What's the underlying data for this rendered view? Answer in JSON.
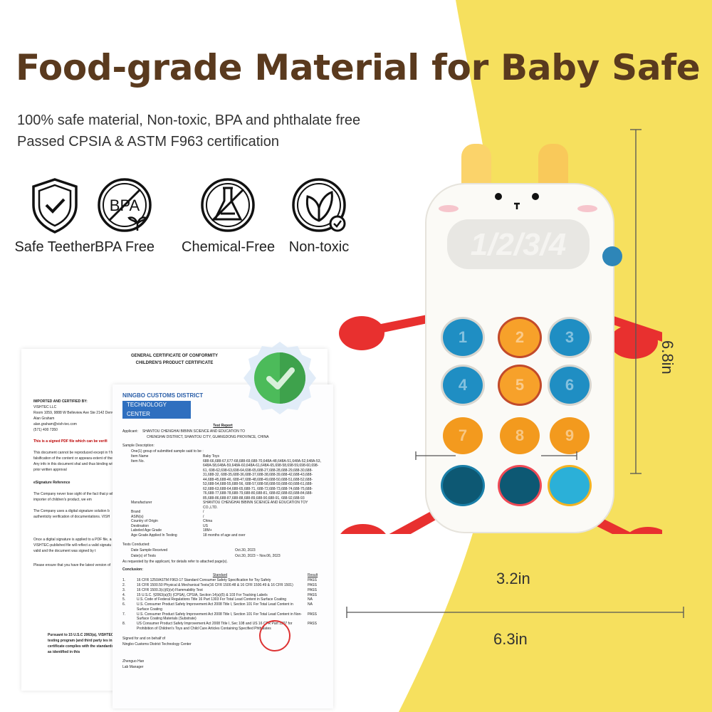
{
  "header": {
    "title": "Food-grade Material for Baby Safe",
    "subtitle_lines": [
      "100% safe material, Non-toxic, BPA and phthalate free",
      "Passed CPSIA & ASTM F963 certification"
    ]
  },
  "features": [
    {
      "icon": "shield-check-icon",
      "label": "Safe Teether"
    },
    {
      "icon": "bpa-free-icon",
      "label": "BPA Free"
    },
    {
      "icon": "no-chemical-flask-icon",
      "label": "Chemical-Free"
    },
    {
      "icon": "leaf-check-icon",
      "label": "Non-toxic"
    }
  ],
  "colors": {
    "title": "#5a3a1e",
    "yellow": "#f6e05e",
    "toy_red": "#e8302f",
    "key_blue": "#1f8ec3",
    "key_orange": "#f7a12a",
    "check_green": "#4cbb5a"
  },
  "certificate": {
    "title1": "GENERAL CERTIFICATE OF CONFORMITY",
    "title2": "CHILDREN'S PRODUCT CERTIFICATE",
    "imported_label": "IMPORTED AND CERTIFIED BY:",
    "company": "VISHTEC LLC",
    "address": "Room 1059, 9888 W Belleview Ave Ste 2142 Denver, C",
    "contact": "Alan Graham",
    "email": "alan.graham@vish-tec.com",
    "phone": "(571) 400 7350",
    "signed_note": "This is a signed PDF file which can be verifi",
    "para1": "This document cannot be reproduced except in f forgery or falsification of the content or appeara extent of the law. Any info in this document shal and thus binding without prior written approval",
    "esig": "eSignature Reference",
    "para2": "The Company never lose sight of the fact that p why, as an importer of children's product, we em",
    "para3": "The Company uses a digital signature solution b authenticity verification of documentations. VISH",
    "para4": "Once a digital signature is applied to a PDF file, a VISHTEC-published file will reflect a valid signatu is in fact valid and the document was signed by t",
    "para5": "Please ensure that you have the latest version of",
    "footer": "Pursuant to 15 U.S.C 2063(a), VISHTEC testing program (and third party tes in this certificate complies with the standards in U.S as identified in this"
  },
  "report": {
    "org1": "NINGBO CUSTOMS DISTRICT",
    "org2": "TECHNOLOGY CENTER",
    "heading": "Test Report",
    "applicant_label": "Applicant:",
    "applicant": "SHANTOU CHENGHAI BIBINN SCIENCE AND EDUCATION TO",
    "applicant_addr": "CHENGHAI DISTRICT, SHANTOU CITY, GUANGDONG PROVINCE, CHINA",
    "sample_desc": "Sample Description:",
    "sample_intro": "One(1) group of submitted sample said to be :",
    "fields": [
      {
        "k": "Item Name",
        "v": "Baby Toys"
      },
      {
        "k": "Item No.",
        "v": "688-66,688-67,677-68,688-69,688-70,648A-48,648A-51,648A-52,648A-53, 648A-58,648A-59,648A-60,648A-61,648A-65,698-58,698-59,698-60,698-61, 698-62,698-63,698-64,698-65,688-27,688-28,688-29,688-30,688-31,688-32, 688-35,688-36,688-37,688-38,688-39,688-42,688-43,688-44,688-45,688-46, 688-47,688-48,688-49,688-50,688-51,688-52,688-53,688-54,688-55,688-56, 688-57,688-58,688-59,688-60,688-61,688-62,688-63,688-64,688-65,688-71, 688-72,688-73,688-74,688-75,688-76,688-77,688-78,688-79,688-80,688-81, 688-82,688-83,688-84,688-85,688-86,688-87,688-88,688-89,688-90,688-91, 688-92,688-93"
      },
      {
        "k": "Manufacturer",
        "v": "SHANTOU CHENGHAI BIBINN SCIENCE AND EDUCATION TOY CO.,LTD."
      },
      {
        "k": "Brand",
        "v": "/"
      },
      {
        "k": "ASIN(s)",
        "v": "/"
      },
      {
        "k": "Country of Origin",
        "v": "China"
      },
      {
        "k": "Destination",
        "v": "US"
      },
      {
        "k": "Labeled Age Grade",
        "v": "18M+"
      },
      {
        "k": "Age Grade Applied In Testing",
        "v": "18 months of age and over"
      }
    ],
    "tests_conducted": "Tests Conducted:",
    "received_label": "Date Sample Received",
    "received": "Oct.30, 2023",
    "dates_label": "Date(s) of Tests",
    "dates": "Oct.30, 2023 ~ Nov.06, 2023",
    "requested": "As requested by the applicant, for details refer to attached page(s).",
    "conclusion": "Conclusion:",
    "std_header": "Standard",
    "result_header": "Result",
    "results": [
      {
        "n": "1.",
        "s": "16 CFR 1250/ASTM F963-17 Standard Consumer Safety Specification for Toy Safety",
        "r": "PASS"
      },
      {
        "n": "2.",
        "s": "16 CFR 1500.50 Physical & Mechanical Tests(16 CFR 1500.48 & 16 CFR 1500.49 & 16 CFR 1501)",
        "r": "PASS"
      },
      {
        "n": "3.",
        "s": "16 CFR 1500.3(c)(6)(vi) Flammability Test",
        "r": "PASS"
      },
      {
        "n": "4.",
        "s": "15 U.S.C. §2063(a)(5) (CPSA), CPSIA, Section 14(a)(5) & 103 For Tracking Labels",
        "r": "PASS"
      },
      {
        "n": "5.",
        "s": "U.S. Code of Federal Regulations Title 16 Part 1303 For Total Lead Content in Surface Coating",
        "r": "NA"
      },
      {
        "n": "6.",
        "s": "U.S. Consumer Product Safety Improvement Act 2008 Title I, Section 101 For Total Lead Content in Surface Coating",
        "r": "NA"
      },
      {
        "n": "7.",
        "s": "U.S. Consumer Product Safety Improvement Act 2008 Title I, Section 101 For Total Lead Content in Non-Surface Coating Materials (Substrate)",
        "r": "PASS"
      },
      {
        "n": "8.",
        "s": "US Consumer Product Safety Improvement Act 2008 Title I, Sec 108 and US 16 CFR Part 1307 for Prohibition of Children's Toys and Child Care Articles Containing Specified Phthalates",
        "r": "PASS"
      }
    ],
    "signed_for": "Signed for and on behalf of",
    "signed_org": "Ningbo Customs District Technology Center",
    "signer": "Zhenguo Han",
    "signer_title": "Lab Manager"
  },
  "toy": {
    "keys": [
      "1",
      "2",
      "3",
      "4",
      "5",
      "6",
      "7",
      "8",
      "9",
      "",
      "",
      ""
    ],
    "display": "1/2/3/4"
  },
  "dimensions": {
    "height": "6.8in",
    "inner_width": "3.2in",
    "width": "6.3in"
  }
}
